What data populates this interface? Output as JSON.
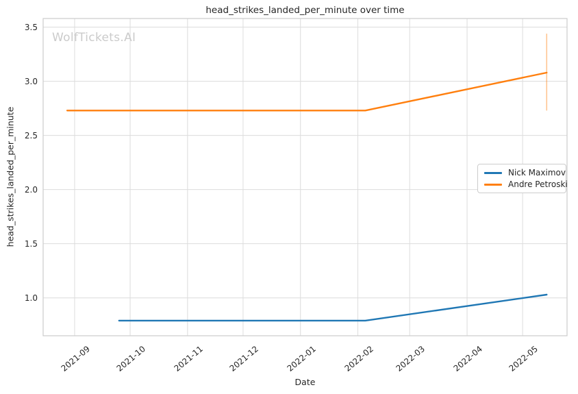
{
  "chart_data": {
    "type": "line",
    "title": "head_strikes_landed_per_minute over time",
    "xlabel": "Date",
    "ylabel": "head_strikes_landed_per_minute",
    "watermark": "WolfTickets.AI",
    "grid": true,
    "legend_position": "right-center inside plot",
    "xlim": [
      "2021-08-15",
      "2022-05-25"
    ],
    "ylim": [
      0.65,
      3.58
    ],
    "x_ticks": [
      {
        "label": "2021-09",
        "date": "2021-09-01"
      },
      {
        "label": "2021-10",
        "date": "2021-10-01"
      },
      {
        "label": "2021-11",
        "date": "2021-11-01"
      },
      {
        "label": "2021-12",
        "date": "2021-12-01"
      },
      {
        "label": "2022-01",
        "date": "2022-01-01"
      },
      {
        "label": "2022-02",
        "date": "2022-02-01"
      },
      {
        "label": "2022-03",
        "date": "2022-03-01"
      },
      {
        "label": "2022-04",
        "date": "2022-04-01"
      },
      {
        "label": "2022-05",
        "date": "2022-05-01"
      }
    ],
    "y_ticks": [
      {
        "label": "1.0",
        "value": 1.0
      },
      {
        "label": "1.5",
        "value": 1.5
      },
      {
        "label": "2.0",
        "value": 2.0
      },
      {
        "label": "2.5",
        "value": 2.5
      },
      {
        "label": "3.0",
        "value": 3.0
      },
      {
        "label": "3.5",
        "value": 3.5
      }
    ],
    "colors": {
      "grid": "#dcdcdc",
      "spine": "#cccccc",
      "text": "#262626",
      "watermark": "#cbcbcb",
      "nick_maximov": "#1f77b4",
      "andre_petroski": "#ff7f0e"
    },
    "series": [
      {
        "name": "Nick Maximov",
        "color": "#1f77b4",
        "points": [
          [
            "2021-09-25",
            0.79
          ],
          [
            "2022-02-05",
            0.79
          ],
          [
            "2022-05-14",
            1.03
          ]
        ]
      },
      {
        "name": "Andre Petroski",
        "color": "#ff7f0e",
        "points": [
          [
            "2021-08-28",
            2.73
          ],
          [
            "2022-02-05",
            2.73
          ],
          [
            "2022-05-14",
            3.08
          ]
        ],
        "error_bar": {
          "x": "2022-05-14",
          "y_min": 2.73,
          "y_max": 3.44
        }
      }
    ]
  }
}
